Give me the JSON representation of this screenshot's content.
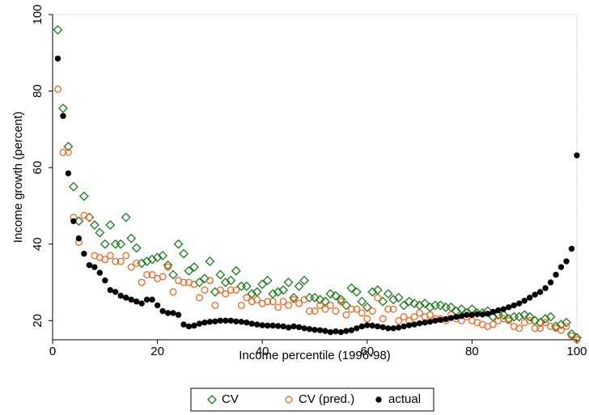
{
  "chart_data": {
    "type": "scatter",
    "xlabel": "Income percentile (1996-98)",
    "ylabel": "Income growth (percent)",
    "xlim": [
      0,
      100
    ],
    "xticks": [
      0,
      20,
      40,
      60,
      80,
      100
    ],
    "ylim": [
      15,
      100
    ],
    "yticks": [
      20,
      40,
      60,
      80,
      100
    ],
    "x": [
      1,
      2,
      3,
      4,
      5,
      6,
      7,
      8,
      9,
      10,
      11,
      12,
      13,
      14,
      15,
      16,
      17,
      18,
      19,
      20,
      21,
      22,
      23,
      24,
      25,
      26,
      27,
      28,
      29,
      30,
      31,
      32,
      33,
      34,
      35,
      36,
      37,
      38,
      39,
      40,
      41,
      42,
      43,
      44,
      45,
      46,
      47,
      48,
      49,
      50,
      51,
      52,
      53,
      54,
      55,
      56,
      57,
      58,
      59,
      60,
      61,
      62,
      63,
      64,
      65,
      66,
      67,
      68,
      69,
      70,
      71,
      72,
      73,
      74,
      75,
      76,
      77,
      78,
      79,
      80,
      81,
      82,
      83,
      84,
      85,
      86,
      87,
      88,
      89,
      90,
      91,
      92,
      93,
      94,
      95,
      96,
      97,
      98,
      99,
      100
    ],
    "legend": "bottom",
    "series": [
      {
        "name": "CV",
        "color": "#1a7a1a",
        "marker": "diamond",
        "filled": false,
        "values": [
          96,
          75.5,
          65.5,
          55,
          46,
          52.5,
          47,
          45,
          43,
          40,
          45,
          40,
          40,
          47,
          41.5,
          39,
          35,
          35.5,
          36,
          36.5,
          37,
          34.5,
          32,
          40,
          37.5,
          33,
          34,
          30,
          31,
          35.5,
          27.5,
          32,
          30,
          30.5,
          33,
          29,
          29,
          27,
          27.5,
          29.5,
          30.5,
          27,
          27.5,
          28,
          30,
          26,
          29,
          30.5,
          26,
          26,
          25.5,
          25,
          27,
          26.5,
          25.5,
          24,
          28.5,
          27.5,
          25,
          23.5,
          27.5,
          28,
          25,
          27,
          25.5,
          26,
          24,
          25,
          24.5,
          24,
          24.5,
          23.5,
          24,
          24,
          23.5,
          23.5,
          22.5,
          23,
          22,
          23,
          22,
          22,
          22.5,
          21,
          21.5,
          21.5,
          20.5,
          21,
          21,
          21.5,
          21,
          20,
          19.5,
          20.5,
          21,
          18.5,
          19,
          19.5,
          16.5,
          15.5
        ]
      },
      {
        "name": "CV (pred.)",
        "color": "#f26522",
        "marker": "circle",
        "filled": false,
        "values": [
          80.5,
          64,
          64,
          47,
          40.5,
          47.5,
          47,
          37,
          36.5,
          36,
          37,
          35.5,
          35.5,
          37,
          34,
          35,
          30,
          32,
          32,
          31,
          31.5,
          34,
          27.5,
          30.5,
          30,
          30,
          29.5,
          26,
          28,
          30.5,
          24,
          28,
          27,
          28,
          28,
          24,
          26,
          25,
          25.5,
          24.5,
          25,
          25,
          23.5,
          25,
          24,
          25.5,
          24.5,
          25.5,
          22.5,
          22.5,
          24,
          23,
          24,
          22.5,
          25,
          21.5,
          23,
          23,
          22,
          20.5,
          22.5,
          26,
          20.5,
          23,
          23,
          20,
          21,
          20,
          21,
          22,
          21,
          21.5,
          20.5,
          20.5,
          20,
          21.5,
          20.5,
          20,
          21,
          20,
          19.5,
          19,
          18.5,
          19,
          20,
          20.5,
          20,
          18.5,
          18,
          19.5,
          20,
          18,
          18,
          19.5,
          18.5,
          18,
          17.5,
          18.5,
          16,
          15
        ]
      },
      {
        "name": "actual",
        "color": "#000000",
        "marker": "circle",
        "filled": true,
        "values": [
          88.5,
          73.5,
          58.5,
          46,
          41.5,
          37.5,
          34.5,
          34,
          32.5,
          30.5,
          28,
          27.5,
          26.5,
          26,
          25.5,
          25,
          24.5,
          25.5,
          25.5,
          24,
          22.5,
          22,
          22,
          21.5,
          19,
          18.5,
          18.7,
          19.2,
          19.5,
          19.7,
          19.8,
          20,
          20,
          20,
          19.8,
          19.7,
          19.5,
          19.2,
          19,
          18.8,
          18.7,
          18.7,
          18.6,
          18.5,
          18.2,
          18.5,
          18.3,
          18,
          17.8,
          17.6,
          17.5,
          17.3,
          17,
          17.2,
          17,
          17.3,
          17.5,
          18,
          18.5,
          18.8,
          18.7,
          18.5,
          18.3,
          18,
          18,
          18.2,
          18.5,
          18.8,
          19,
          19.3,
          19.5,
          19.7,
          20,
          20.2,
          20.4,
          20.7,
          21,
          21.2,
          21.5,
          21.5,
          21.7,
          21.6,
          21.8,
          22.3,
          22.7,
          23,
          23.5,
          24,
          24.5,
          25.2,
          26,
          26.8,
          27.5,
          28.5,
          30,
          32,
          34,
          35.5,
          38.8,
          63.2
        ]
      }
    ]
  }
}
